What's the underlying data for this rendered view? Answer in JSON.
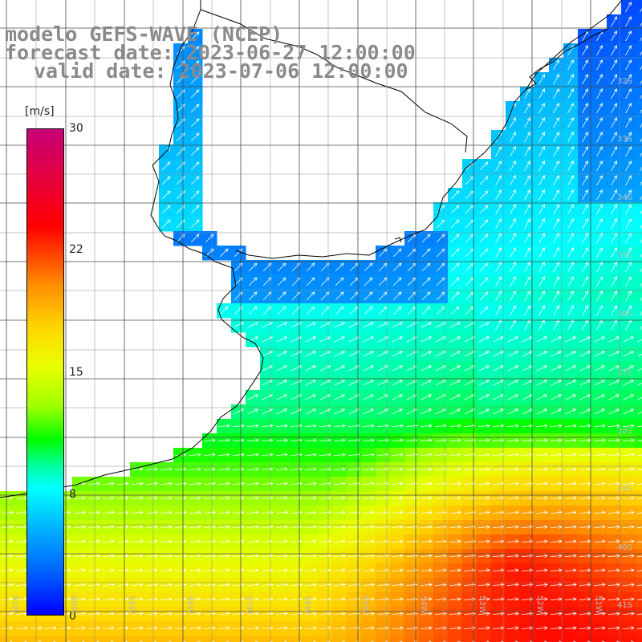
{
  "title": {
    "line1": "modelo GEFS-WAVE (NCEP)",
    "line2": "forecast date: 2023-06-27 12:00:00",
    "line3": "valid date: 2023-07-06 12:00:00"
  },
  "colorbar": {
    "unit": "[m/s]",
    "ticks": [
      "30",
      "22",
      "15",
      "8",
      "0"
    ],
    "tick_values": [
      30,
      22,
      15,
      8,
      0
    ]
  },
  "axes": {
    "longitude_labels": [
      "61W",
      "60W",
      "59W",
      "58W",
      "57W",
      "56W",
      "55W",
      "54W",
      "53W",
      "52W",
      "51W"
    ],
    "latitude_labels": [
      "32S",
      "33S",
      "34S",
      "35S",
      "36S",
      "37S",
      "38S",
      "39S",
      "40S",
      "41S"
    ]
  },
  "colors": {
    "land": "#ffffff",
    "coast": "#000000",
    "grid": "#555555",
    "arrows": "#ffffff",
    "title_text": "#8a8a8a"
  }
}
